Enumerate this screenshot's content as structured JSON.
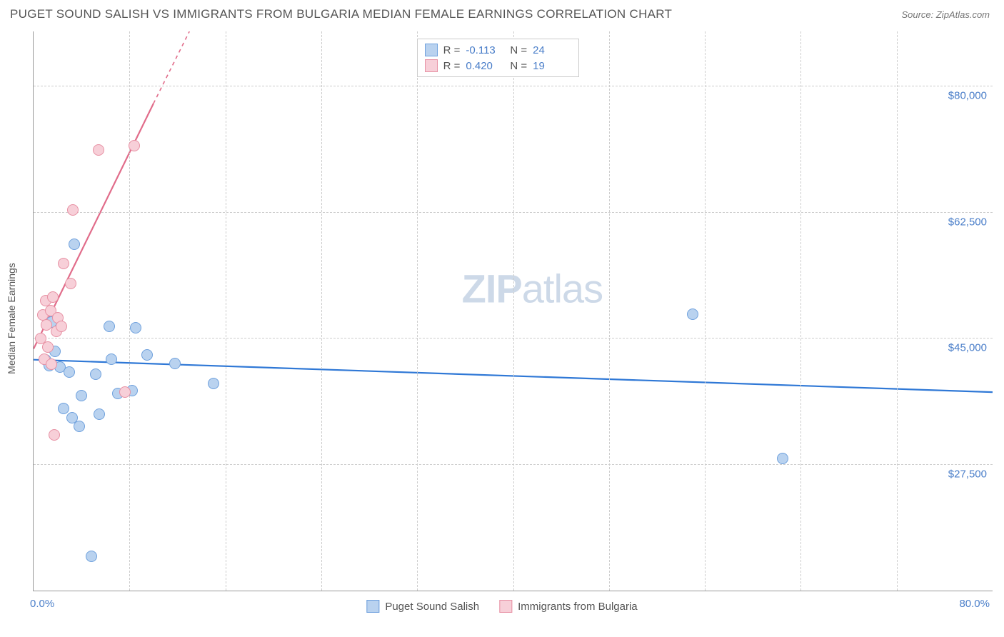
{
  "title": "PUGET SOUND SALISH VS IMMIGRANTS FROM BULGARIA MEDIAN FEMALE EARNINGS CORRELATION CHART",
  "source": "Source: ZipAtlas.com",
  "watermark_zip": "ZIP",
  "watermark_atlas": "atlas",
  "y_axis_label": "Median Female Earnings",
  "chart": {
    "type": "scatter",
    "xlim": [
      0,
      80
    ],
    "ylim": [
      10000,
      87500
    ],
    "x_min_label": "0.0%",
    "x_max_label": "80.0%",
    "y_ticks": [
      27500,
      45000,
      62500,
      80000
    ],
    "y_tick_labels": [
      "$27,500",
      "$45,000",
      "$62,500",
      "$80,000"
    ],
    "x_grid": [
      0,
      8,
      16,
      24,
      32,
      40,
      48,
      56,
      64,
      72
    ],
    "background_color": "#ffffff",
    "grid_color": "#cccccc",
    "axis_color": "#999999",
    "text_color": "#555555",
    "tick_label_color": "#4a7ec9"
  },
  "series": [
    {
      "name": "Puget Sound Salish",
      "fill": "#b9d2ef",
      "stroke": "#6ea0dd",
      "line_color": "#2f78d6",
      "r_label": "R =",
      "r_value": "-0.113",
      "n_label": "N =",
      "n_value": "24",
      "trend": {
        "x1": 0,
        "y1": 42000,
        "x2": 80,
        "y2": 37500,
        "dashed": false
      },
      "points": [
        {
          "x": 1.0,
          "y": 42000
        },
        {
          "x": 1.3,
          "y": 41200
        },
        {
          "x": 1.5,
          "y": 47200
        },
        {
          "x": 1.8,
          "y": 43200
        },
        {
          "x": 2.2,
          "y": 41000
        },
        {
          "x": 2.5,
          "y": 35200
        },
        {
          "x": 3.0,
          "y": 40300
        },
        {
          "x": 3.2,
          "y": 34000
        },
        {
          "x": 3.4,
          "y": 58000
        },
        {
          "x": 3.8,
          "y": 32800
        },
        {
          "x": 4.0,
          "y": 37000
        },
        {
          "x": 4.8,
          "y": 14800
        },
        {
          "x": 5.2,
          "y": 40000
        },
        {
          "x": 5.5,
          "y": 34400
        },
        {
          "x": 6.3,
          "y": 46600
        },
        {
          "x": 6.5,
          "y": 42100
        },
        {
          "x": 7.0,
          "y": 37300
        },
        {
          "x": 8.2,
          "y": 37700
        },
        {
          "x": 8.5,
          "y": 46400
        },
        {
          "x": 9.5,
          "y": 42700
        },
        {
          "x": 11.8,
          "y": 41500
        },
        {
          "x": 15.0,
          "y": 38700
        },
        {
          "x": 55.0,
          "y": 48300
        },
        {
          "x": 62.5,
          "y": 28300
        }
      ]
    },
    {
      "name": "Immigrants from Bulgaria",
      "fill": "#f7cfd8",
      "stroke": "#e790a3",
      "line_color": "#e16c8a",
      "r_label": "R =",
      "r_value": "0.420",
      "n_label": "N =",
      "n_value": "19",
      "trend": {
        "x1": 0,
        "y1": 43500,
        "x2": 13,
        "y2": 87500,
        "dashed_from": 10,
        "dashed_y": 77500
      },
      "points": [
        {
          "x": 0.6,
          "y": 44900
        },
        {
          "x": 0.8,
          "y": 48200
        },
        {
          "x": 0.9,
          "y": 42100
        },
        {
          "x": 1.0,
          "y": 50200
        },
        {
          "x": 1.1,
          "y": 46800
        },
        {
          "x": 1.2,
          "y": 43800
        },
        {
          "x": 1.4,
          "y": 48800
        },
        {
          "x": 1.5,
          "y": 41400
        },
        {
          "x": 1.6,
          "y": 50700
        },
        {
          "x": 1.7,
          "y": 31600
        },
        {
          "x": 1.9,
          "y": 45900
        },
        {
          "x": 2.0,
          "y": 47800
        },
        {
          "x": 2.3,
          "y": 46600
        },
        {
          "x": 2.5,
          "y": 55300
        },
        {
          "x": 3.1,
          "y": 52600
        },
        {
          "x": 3.3,
          "y": 62800
        },
        {
          "x": 5.4,
          "y": 71100
        },
        {
          "x": 7.6,
          "y": 37500
        },
        {
          "x": 8.4,
          "y": 71700
        }
      ]
    }
  ]
}
